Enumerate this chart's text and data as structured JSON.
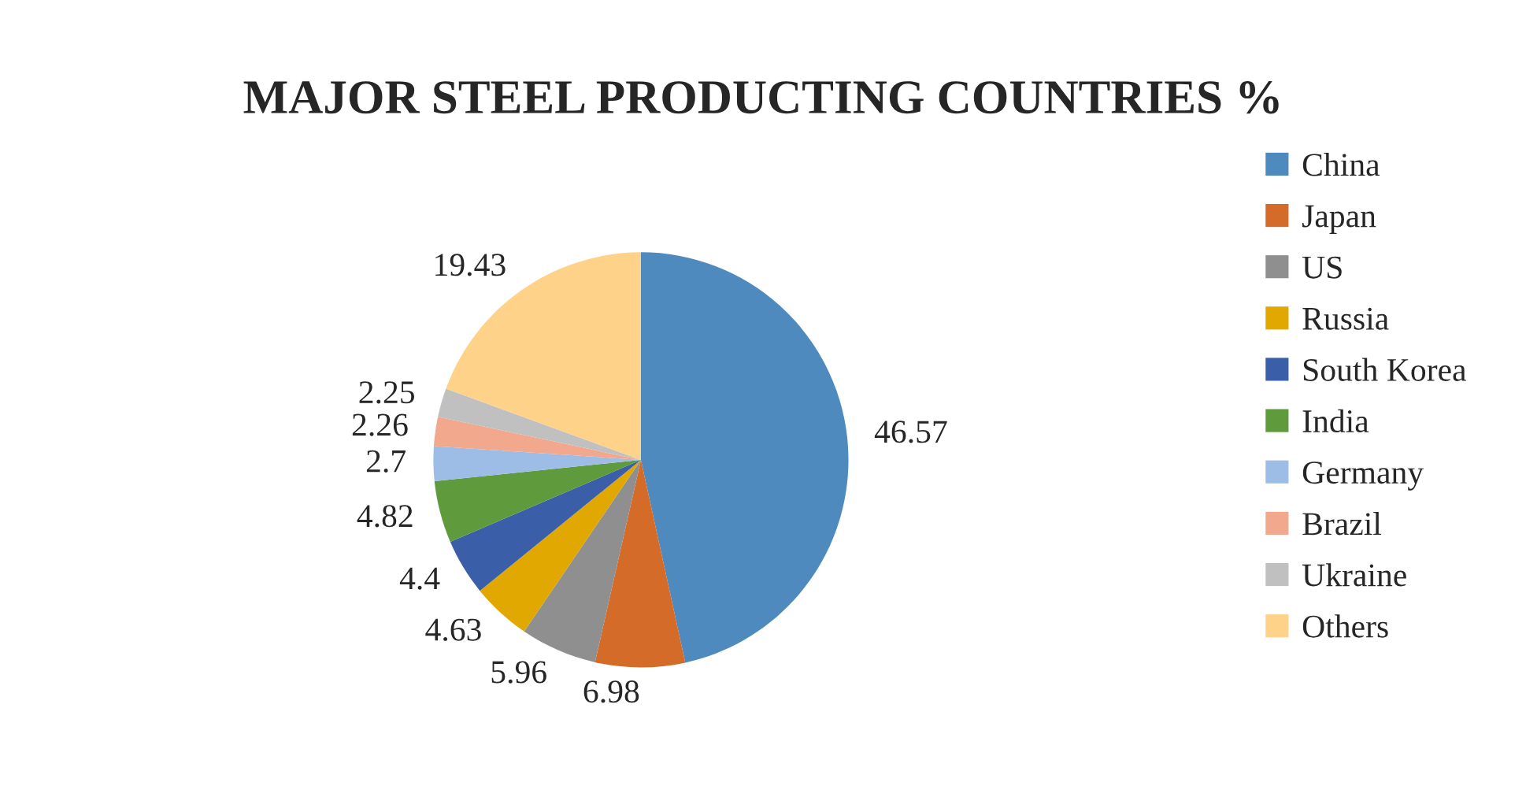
{
  "chart_data": {
    "type": "pie",
    "title": "MAJOR STEEL PRODUCTING COUNTRIES %",
    "categories": [
      "China",
      "Japan",
      "US",
      "Russia",
      "South Korea",
      "India",
      "Germany",
      "Brazil",
      "Ukraine",
      "Others"
    ],
    "values": [
      46.57,
      6.98,
      5.96,
      4.63,
      4.4,
      4.82,
      2.7,
      2.26,
      2.25,
      19.43
    ],
    "colors": [
      "#4e8abe",
      "#d46b29",
      "#8f8f8f",
      "#e0a800",
      "#3a5ea8",
      "#5f9a3d",
      "#9dbde6",
      "#f1a88c",
      "#c0c0c0",
      "#ffd28a"
    ],
    "data_labels": true,
    "legend": "right"
  }
}
